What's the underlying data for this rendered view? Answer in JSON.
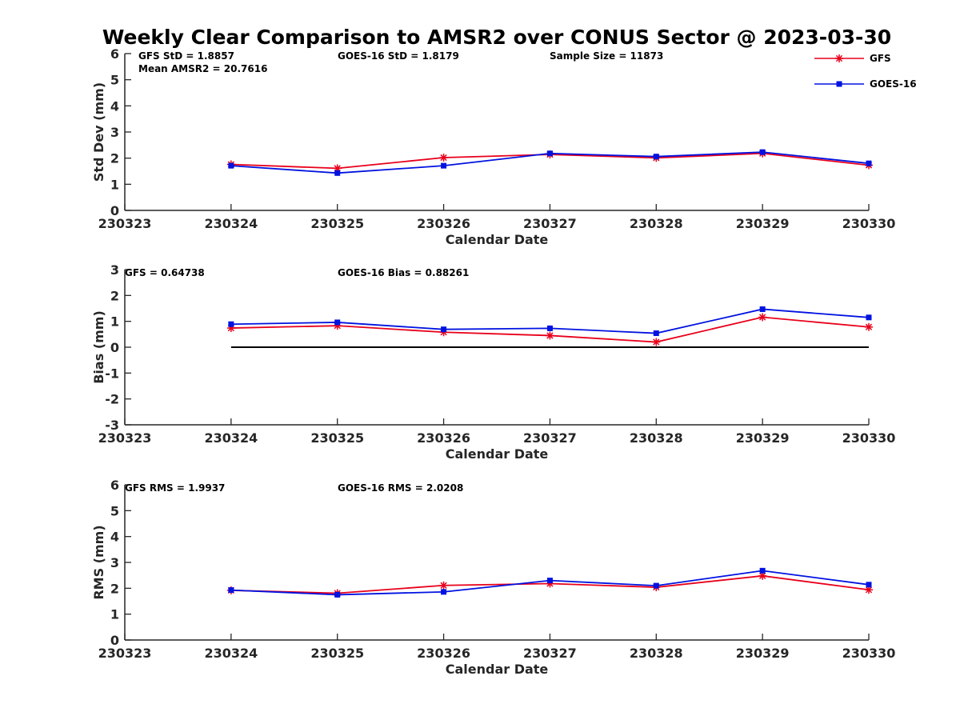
{
  "chart_data": [
    {
      "type": "line",
      "title": "Weekly Clear Comparison to AMSR2 over CONUS Sector @ 2023-03-30",
      "xlabel": "Calendar Date",
      "ylabel": "Std Dev (mm)",
      "x_ticks": [
        "230323",
        "230324",
        "230325",
        "230326",
        "230327",
        "230328",
        "230329",
        "230330"
      ],
      "ylim": [
        0,
        6
      ],
      "y_ticks": [
        "0",
        "1",
        "2",
        "3",
        "4",
        "5",
        "6"
      ],
      "annotations": [
        "GFS StD = 1.8857",
        "Mean AMSR2 = 20.7616",
        "GOES-16 StD = 1.8179",
        "Sample Size = 11873"
      ],
      "legend": {
        "position": "top-right",
        "entries": [
          "GFS",
          "GOES-16"
        ]
      },
      "series": [
        {
          "name": "GFS",
          "color": "#e8001b",
          "marker": "star",
          "values": [
            1.76,
            1.61,
            2.02,
            2.14,
            2.01,
            2.18,
            1.73
          ]
        },
        {
          "name": "GOES-16",
          "color": "#0012e0",
          "marker": "square",
          "values": [
            1.71,
            1.43,
            1.71,
            2.18,
            2.06,
            2.23,
            1.8
          ]
        }
      ]
    },
    {
      "type": "line",
      "title": "",
      "xlabel": "Calendar Date",
      "ylabel": "Bias (mm)",
      "x_ticks": [
        "230323",
        "230324",
        "230325",
        "230326",
        "230327",
        "230328",
        "230329",
        "230330"
      ],
      "ylim": [
        -3,
        3
      ],
      "y_ticks": [
        "-3",
        "-2",
        "-1",
        "0",
        "1",
        "2",
        "3"
      ],
      "annotations": [
        "GFS = 0.64738",
        "GOES-16 Bias  = 0.88261"
      ],
      "reference_line": 0,
      "series": [
        {
          "name": "GFS",
          "color": "#e8001b",
          "marker": "star",
          "values": [
            0.74,
            0.83,
            0.58,
            0.45,
            0.2,
            1.16,
            0.78
          ]
        },
        {
          "name": "GOES-16",
          "color": "#0012e0",
          "marker": "square",
          "values": [
            0.89,
            0.96,
            0.69,
            0.73,
            0.54,
            1.47,
            1.15
          ]
        }
      ]
    },
    {
      "type": "line",
      "title": "",
      "xlabel": "Calendar Date",
      "ylabel": "RMS (mm)",
      "x_ticks": [
        "230323",
        "230324",
        "230325",
        "230326",
        "230327",
        "230328",
        "230329",
        "230330"
      ],
      "ylim": [
        0,
        6
      ],
      "y_ticks": [
        "0",
        "1",
        "2",
        "3",
        "4",
        "5",
        "6"
      ],
      "annotations": [
        "GFS RMS = 1.9937",
        "GOES-16 RMS = 2.0208"
      ],
      "series": [
        {
          "name": "GFS",
          "color": "#e8001b",
          "marker": "star",
          "values": [
            1.92,
            1.81,
            2.11,
            2.18,
            2.04,
            2.48,
            1.94
          ]
        },
        {
          "name": "GOES-16",
          "color": "#0012e0",
          "marker": "square",
          "values": [
            1.93,
            1.75,
            1.86,
            2.3,
            2.1,
            2.68,
            2.14
          ]
        }
      ]
    }
  ]
}
